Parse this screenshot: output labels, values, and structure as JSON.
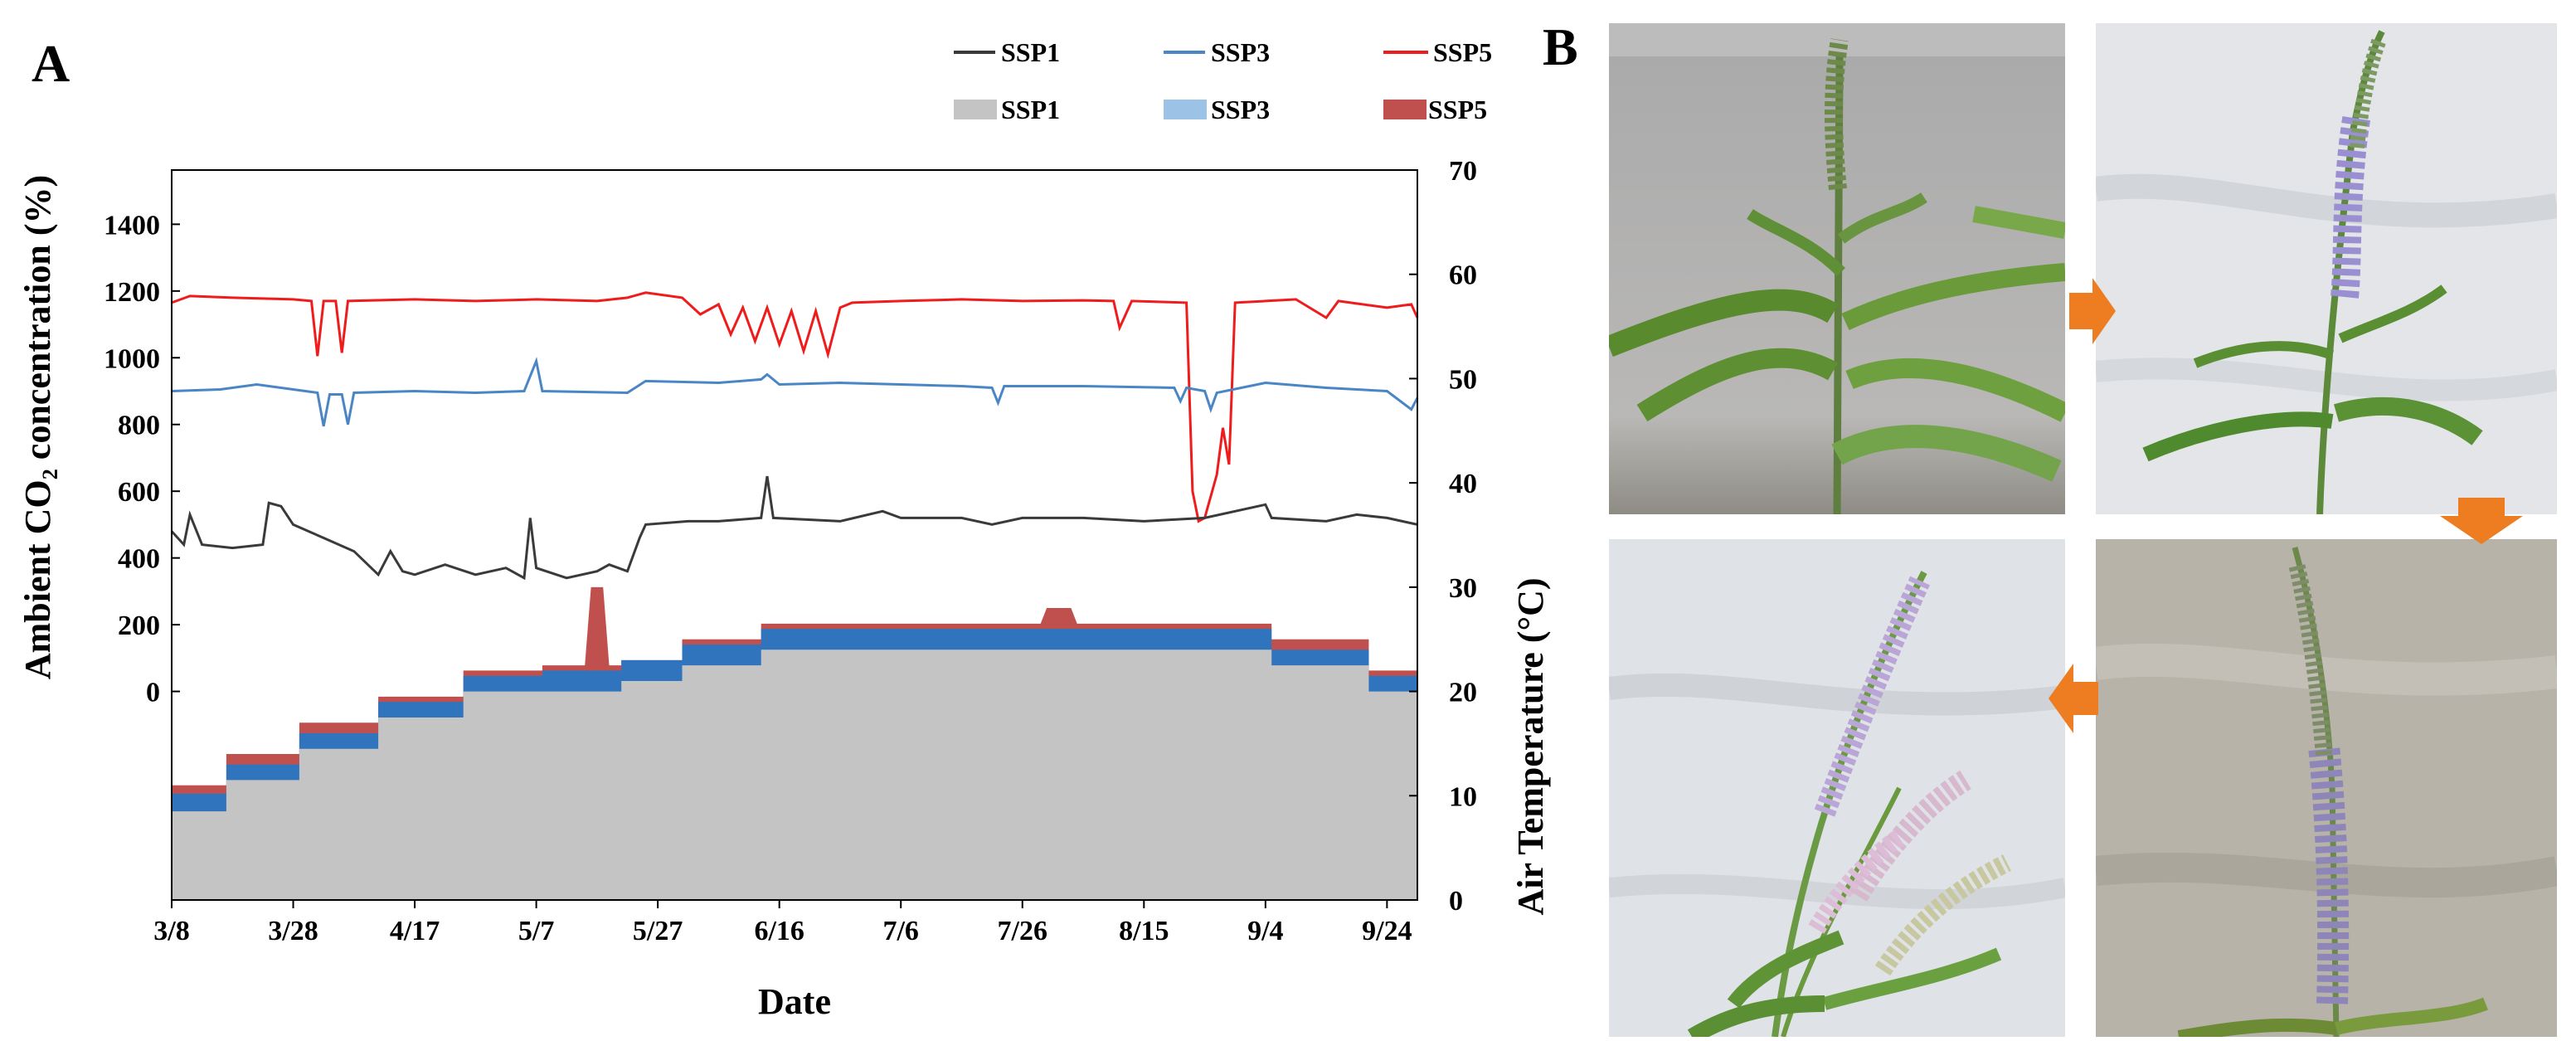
{
  "panel_a_label": "A",
  "panel_b_label": "B",
  "legend": {
    "line_items": [
      "SSP1",
      "SSP3",
      "SSP5"
    ],
    "area_items": [
      "SSP1",
      "SSP3",
      "SSP5"
    ]
  },
  "colors": {
    "ssp1_line": "#3a3a3a",
    "ssp3_line": "#4a86c5",
    "ssp5_line": "#ee1c1c",
    "ssp1_area": "#c4c4c4",
    "ssp3_area": "#2f74bd",
    "ssp5_area": "#c0504d"
  },
  "chart_data": {
    "type": "line",
    "xlabel": "Date",
    "ylabel_left": "Ambient CO₂ concentration (%)",
    "ylabel_right": "Air Temperature (°C)",
    "x_tick_labels": [
      "3/8",
      "3/28",
      "4/17",
      "5/7",
      "5/27",
      "6/16",
      "7/6",
      "7/26",
      "8/15",
      "9/4",
      "9/24"
    ],
    "x_range_days": [
      0,
      205
    ],
    "y_left_ticks": [
      0,
      200,
      400,
      600,
      800,
      1000,
      1200,
      1400
    ],
    "y_right_ticks": [
      0,
      10,
      20,
      30,
      40,
      50,
      60,
      70
    ],
    "y_right_range": [
      0,
      70
    ],
    "co2_series": [
      {
        "name": "SSP5",
        "points": [
          [
            0,
            1165
          ],
          [
            3,
            1185
          ],
          [
            10,
            1180
          ],
          [
            20,
            1175
          ],
          [
            23,
            1170
          ],
          [
            24,
            1005
          ],
          [
            25,
            1170
          ],
          [
            27,
            1170
          ],
          [
            28,
            1015
          ],
          [
            29,
            1170
          ],
          [
            40,
            1175
          ],
          [
            50,
            1170
          ],
          [
            60,
            1175
          ],
          [
            70,
            1170
          ],
          [
            75,
            1180
          ],
          [
            78,
            1195
          ],
          [
            84,
            1180
          ],
          [
            87,
            1130
          ],
          [
            90,
            1160
          ],
          [
            92,
            1070
          ],
          [
            94,
            1150
          ],
          [
            96,
            1050
          ],
          [
            98,
            1150
          ],
          [
            100,
            1040
          ],
          [
            102,
            1140
          ],
          [
            104,
            1020
          ],
          [
            106,
            1140
          ],
          [
            108,
            1010
          ],
          [
            110,
            1150
          ],
          [
            112,
            1165
          ],
          [
            120,
            1170
          ],
          [
            130,
            1175
          ],
          [
            140,
            1170
          ],
          [
            150,
            1172
          ],
          [
            155,
            1170
          ],
          [
            156,
            1090
          ],
          [
            158,
            1170
          ],
          [
            167,
            1165
          ],
          [
            168,
            600
          ],
          [
            169,
            510
          ],
          [
            170,
            520
          ],
          [
            172,
            650
          ],
          [
            173,
            790
          ],
          [
            174,
            680
          ],
          [
            175,
            1165
          ],
          [
            180,
            1170
          ],
          [
            185,
            1175
          ],
          [
            190,
            1120
          ],
          [
            192,
            1170
          ],
          [
            200,
            1150
          ],
          [
            204,
            1160
          ],
          [
            205,
            1120
          ]
        ]
      },
      {
        "name": "SSP3",
        "points": [
          [
            0,
            900
          ],
          [
            8,
            905
          ],
          [
            14,
            920
          ],
          [
            20,
            905
          ],
          [
            24,
            895
          ],
          [
            25,
            795
          ],
          [
            26,
            890
          ],
          [
            28,
            890
          ],
          [
            29,
            800
          ],
          [
            30,
            895
          ],
          [
            40,
            900
          ],
          [
            50,
            895
          ],
          [
            58,
            900
          ],
          [
            60,
            990
          ],
          [
            61,
            900
          ],
          [
            75,
            895
          ],
          [
            78,
            930
          ],
          [
            90,
            925
          ],
          [
            97,
            935
          ],
          [
            98,
            950
          ],
          [
            100,
            920
          ],
          [
            110,
            925
          ],
          [
            120,
            920
          ],
          [
            130,
            915
          ],
          [
            135,
            910
          ],
          [
            136,
            865
          ],
          [
            137,
            915
          ],
          [
            150,
            915
          ],
          [
            165,
            910
          ],
          [
            166,
            870
          ],
          [
            167,
            910
          ],
          [
            170,
            900
          ],
          [
            171,
            845
          ],
          [
            172,
            895
          ],
          [
            180,
            925
          ],
          [
            190,
            910
          ],
          [
            200,
            900
          ],
          [
            204,
            845
          ],
          [
            205,
            880
          ]
        ]
      },
      {
        "name": "SSP1",
        "points": [
          [
            0,
            480
          ],
          [
            2,
            440
          ],
          [
            3,
            530
          ],
          [
            5,
            440
          ],
          [
            10,
            430
          ],
          [
            15,
            440
          ],
          [
            16,
            565
          ],
          [
            18,
            555
          ],
          [
            20,
            500
          ],
          [
            25,
            460
          ],
          [
            30,
            420
          ],
          [
            34,
            350
          ],
          [
            36,
            420
          ],
          [
            38,
            360
          ],
          [
            40,
            350
          ],
          [
            45,
            380
          ],
          [
            50,
            350
          ],
          [
            55,
            370
          ],
          [
            58,
            340
          ],
          [
            59,
            520
          ],
          [
            60,
            370
          ],
          [
            65,
            340
          ],
          [
            70,
            360
          ],
          [
            72,
            380
          ],
          [
            75,
            360
          ],
          [
            77,
            460
          ],
          [
            78,
            500
          ],
          [
            85,
            510
          ],
          [
            90,
            510
          ],
          [
            97,
            520
          ],
          [
            98,
            645
          ],
          [
            99,
            520
          ],
          [
            110,
            510
          ],
          [
            117,
            540
          ],
          [
            120,
            520
          ],
          [
            130,
            520
          ],
          [
            135,
            500
          ],
          [
            140,
            520
          ],
          [
            150,
            520
          ],
          [
            160,
            510
          ],
          [
            170,
            520
          ],
          [
            180,
            560
          ],
          [
            181,
            520
          ],
          [
            190,
            510
          ],
          [
            195,
            530
          ],
          [
            200,
            520
          ],
          [
            205,
            500
          ]
        ]
      }
    ],
    "temperature_areas": [
      {
        "name": "SSP1",
        "steps": [
          [
            0,
            8.5
          ],
          [
            9,
            8.5
          ],
          [
            9,
            11.5
          ],
          [
            21,
            11.5
          ],
          [
            21,
            14.5
          ],
          [
            34,
            14.5
          ],
          [
            34,
            17.5
          ],
          [
            48,
            17.5
          ],
          [
            48,
            20
          ],
          [
            61,
            20
          ],
          [
            61,
            20
          ],
          [
            74,
            20
          ],
          [
            74,
            21
          ],
          [
            84,
            21
          ],
          [
            84,
            22.5
          ],
          [
            97,
            22.5
          ],
          [
            97,
            24
          ],
          [
            181,
            24
          ],
          [
            181,
            22.5
          ],
          [
            197,
            22.5
          ],
          [
            197,
            20
          ],
          [
            205,
            20
          ]
        ]
      },
      {
        "name": "SSP3",
        "steps": [
          [
            0,
            10.2
          ],
          [
            9,
            10.2
          ],
          [
            9,
            13
          ],
          [
            21,
            13
          ],
          [
            21,
            16
          ],
          [
            34,
            16
          ],
          [
            34,
            19
          ],
          [
            48,
            19
          ],
          [
            48,
            21.5
          ],
          [
            61,
            21.5
          ],
          [
            61,
            22
          ],
          [
            74,
            22
          ],
          [
            74,
            23
          ],
          [
            84,
            23
          ],
          [
            84,
            24.5
          ],
          [
            97,
            24.5
          ],
          [
            97,
            26
          ],
          [
            181,
            26
          ],
          [
            181,
            24
          ],
          [
            197,
            24
          ],
          [
            197,
            21.5
          ],
          [
            205,
            21.5
          ]
        ]
      },
      {
        "name": "SSP5",
        "steps": [
          [
            0,
            11
          ],
          [
            9,
            11
          ],
          [
            9,
            14
          ],
          [
            21,
            14
          ],
          [
            21,
            17
          ],
          [
            34,
            17
          ],
          [
            34,
            19.5
          ],
          [
            48,
            19.5
          ],
          [
            48,
            22
          ],
          [
            61,
            22
          ],
          [
            61,
            22.5
          ],
          [
            68,
            22.5
          ],
          [
            69,
            30
          ],
          [
            71,
            30
          ],
          [
            72,
            22.5
          ],
          [
            74,
            22.5
          ],
          [
            74,
            23
          ],
          [
            84,
            23
          ],
          [
            84,
            25
          ],
          [
            97,
            25
          ],
          [
            97,
            26.5
          ],
          [
            143,
            26.5
          ],
          [
            144,
            28
          ],
          [
            148,
            28
          ],
          [
            149,
            26.5
          ],
          [
            181,
            26.5
          ],
          [
            181,
            25
          ],
          [
            197,
            25
          ],
          [
            197,
            22
          ],
          [
            205,
            22
          ]
        ]
      }
    ]
  }
}
